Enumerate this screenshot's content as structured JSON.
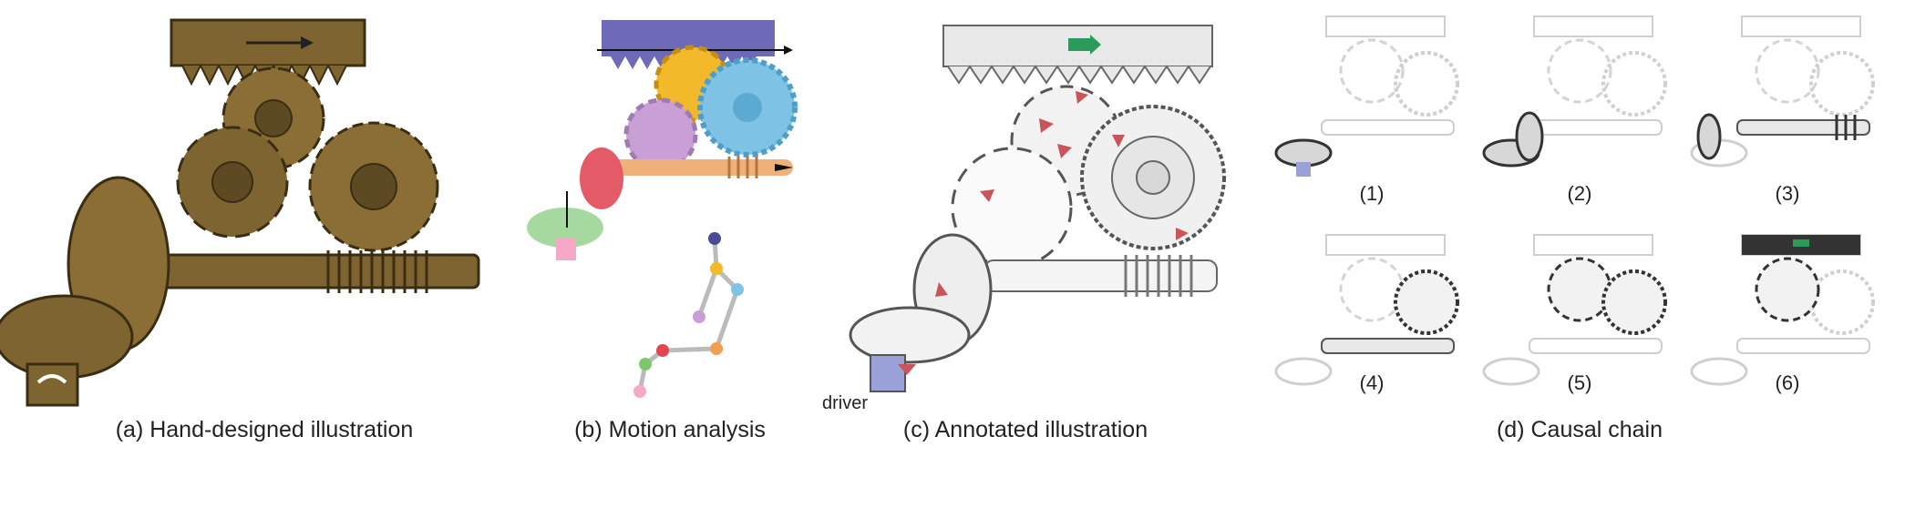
{
  "figure": {
    "panels": [
      {
        "caption": "(a) Hand-designed illustration"
      },
      {
        "caption": "(b) Motion analysis"
      },
      {
        "caption": "(c) Annotated illustration",
        "driver_label": "driver"
      },
      {
        "caption": "(d) Causal chain",
        "steps": [
          "(1)",
          "(2)",
          "(3)",
          "(4)",
          "(5)",
          "(6)"
        ]
      }
    ],
    "colors": {
      "bronze": "#7d6430",
      "bronze_light": "#a88c50",
      "rack_purple": "#6f6ab8",
      "gear_yellow": "#f2b92a",
      "gear_blue": "#7ec3e6",
      "gear_pink": "#c9a0d6",
      "bevel_red": "#e45a66",
      "shaft_orange": "#f0b07a",
      "bevel_green": "#a6d9a0",
      "arrow_red": "#c9545a",
      "arrow_green": "#2c9a5a",
      "gray": "#bdbdbd"
    }
  }
}
